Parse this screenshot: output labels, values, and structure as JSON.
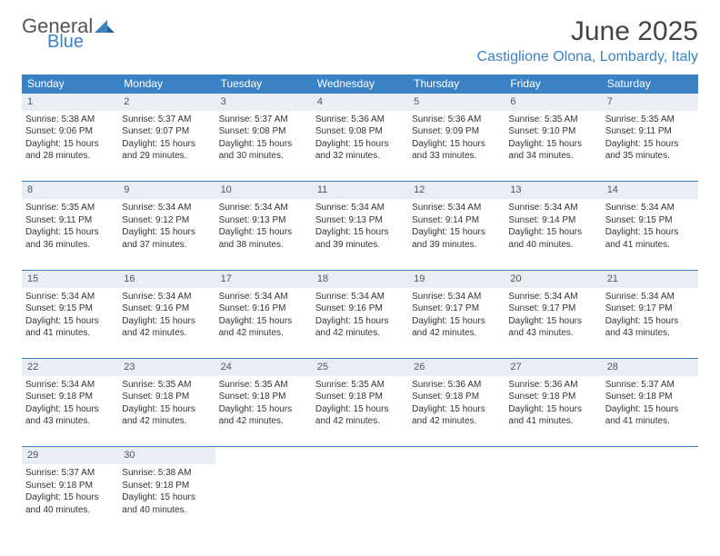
{
  "brand": {
    "line1": "General",
    "line2": "Blue"
  },
  "title": "June 2025",
  "location": "Castiglione Olona, Lombardy, Italy",
  "colors": {
    "accent": "#3b82c4",
    "header_bg": "#3b82c4",
    "daynum_bg": "#e8eef4",
    "text": "#333333",
    "background": "#ffffff"
  },
  "weekdays": [
    "Sunday",
    "Monday",
    "Tuesday",
    "Wednesday",
    "Thursday",
    "Friday",
    "Saturday"
  ],
  "weeks": [
    [
      {
        "n": "1",
        "sr": "5:38 AM",
        "ss": "9:06 PM",
        "dl": "15 hours and 28 minutes."
      },
      {
        "n": "2",
        "sr": "5:37 AM",
        "ss": "9:07 PM",
        "dl": "15 hours and 29 minutes."
      },
      {
        "n": "3",
        "sr": "5:37 AM",
        "ss": "9:08 PM",
        "dl": "15 hours and 30 minutes."
      },
      {
        "n": "4",
        "sr": "5:36 AM",
        "ss": "9:08 PM",
        "dl": "15 hours and 32 minutes."
      },
      {
        "n": "5",
        "sr": "5:36 AM",
        "ss": "9:09 PM",
        "dl": "15 hours and 33 minutes."
      },
      {
        "n": "6",
        "sr": "5:35 AM",
        "ss": "9:10 PM",
        "dl": "15 hours and 34 minutes."
      },
      {
        "n": "7",
        "sr": "5:35 AM",
        "ss": "9:11 PM",
        "dl": "15 hours and 35 minutes."
      }
    ],
    [
      {
        "n": "8",
        "sr": "5:35 AM",
        "ss": "9:11 PM",
        "dl": "15 hours and 36 minutes."
      },
      {
        "n": "9",
        "sr": "5:34 AM",
        "ss": "9:12 PM",
        "dl": "15 hours and 37 minutes."
      },
      {
        "n": "10",
        "sr": "5:34 AM",
        "ss": "9:13 PM",
        "dl": "15 hours and 38 minutes."
      },
      {
        "n": "11",
        "sr": "5:34 AM",
        "ss": "9:13 PM",
        "dl": "15 hours and 39 minutes."
      },
      {
        "n": "12",
        "sr": "5:34 AM",
        "ss": "9:14 PM",
        "dl": "15 hours and 39 minutes."
      },
      {
        "n": "13",
        "sr": "5:34 AM",
        "ss": "9:14 PM",
        "dl": "15 hours and 40 minutes."
      },
      {
        "n": "14",
        "sr": "5:34 AM",
        "ss": "9:15 PM",
        "dl": "15 hours and 41 minutes."
      }
    ],
    [
      {
        "n": "15",
        "sr": "5:34 AM",
        "ss": "9:15 PM",
        "dl": "15 hours and 41 minutes."
      },
      {
        "n": "16",
        "sr": "5:34 AM",
        "ss": "9:16 PM",
        "dl": "15 hours and 42 minutes."
      },
      {
        "n": "17",
        "sr": "5:34 AM",
        "ss": "9:16 PM",
        "dl": "15 hours and 42 minutes."
      },
      {
        "n": "18",
        "sr": "5:34 AM",
        "ss": "9:16 PM",
        "dl": "15 hours and 42 minutes."
      },
      {
        "n": "19",
        "sr": "5:34 AM",
        "ss": "9:17 PM",
        "dl": "15 hours and 42 minutes."
      },
      {
        "n": "20",
        "sr": "5:34 AM",
        "ss": "9:17 PM",
        "dl": "15 hours and 43 minutes."
      },
      {
        "n": "21",
        "sr": "5:34 AM",
        "ss": "9:17 PM",
        "dl": "15 hours and 43 minutes."
      }
    ],
    [
      {
        "n": "22",
        "sr": "5:34 AM",
        "ss": "9:18 PM",
        "dl": "15 hours and 43 minutes."
      },
      {
        "n": "23",
        "sr": "5:35 AM",
        "ss": "9:18 PM",
        "dl": "15 hours and 42 minutes."
      },
      {
        "n": "24",
        "sr": "5:35 AM",
        "ss": "9:18 PM",
        "dl": "15 hours and 42 minutes."
      },
      {
        "n": "25",
        "sr": "5:35 AM",
        "ss": "9:18 PM",
        "dl": "15 hours and 42 minutes."
      },
      {
        "n": "26",
        "sr": "5:36 AM",
        "ss": "9:18 PM",
        "dl": "15 hours and 42 minutes."
      },
      {
        "n": "27",
        "sr": "5:36 AM",
        "ss": "9:18 PM",
        "dl": "15 hours and 41 minutes."
      },
      {
        "n": "28",
        "sr": "5:37 AM",
        "ss": "9:18 PM",
        "dl": "15 hours and 41 minutes."
      }
    ],
    [
      {
        "n": "29",
        "sr": "5:37 AM",
        "ss": "9:18 PM",
        "dl": "15 hours and 40 minutes."
      },
      {
        "n": "30",
        "sr": "5:38 AM",
        "ss": "9:18 PM",
        "dl": "15 hours and 40 minutes."
      },
      null,
      null,
      null,
      null,
      null
    ]
  ],
  "labels": {
    "sunrise": "Sunrise:",
    "sunset": "Sunset:",
    "daylight": "Daylight:"
  }
}
